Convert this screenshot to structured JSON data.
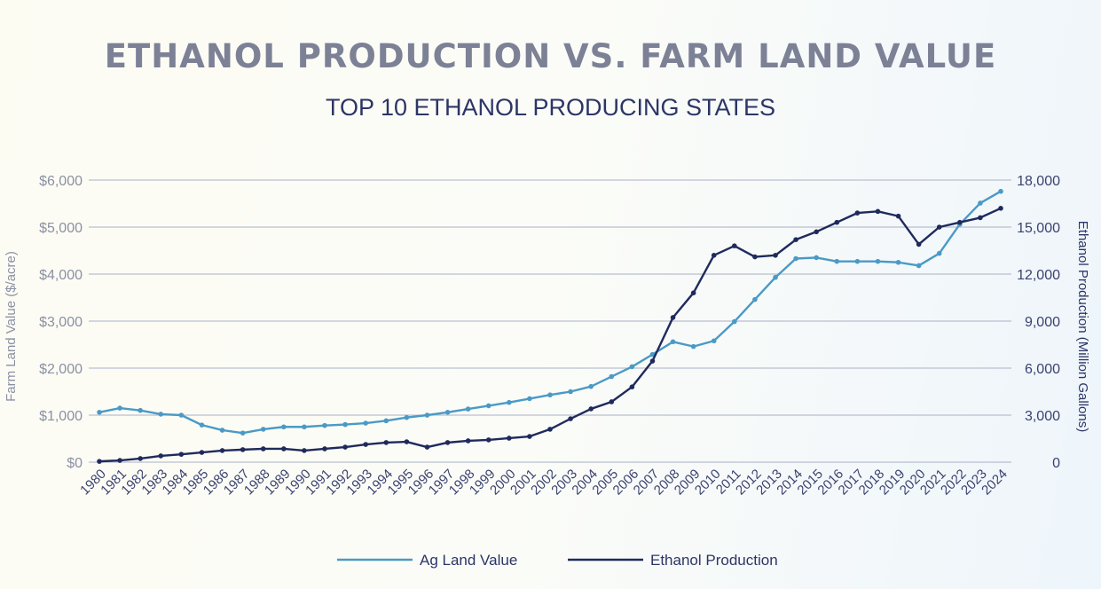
{
  "chart_data": {
    "type": "line",
    "title": "ETHANOL PRODUCTION VS. FARM LAND VALUE",
    "subtitle": "TOP 10 ETHANOL PRODUCING STATES",
    "ylabel": "Farm Land Value ($/acre)",
    "y2label": "Ethanol Production (Million Gallons)",
    "ylim": [
      0,
      6000
    ],
    "y2lim": [
      0,
      18000
    ],
    "yticks": [
      "$0",
      "$1,000",
      "$2,000",
      "$3,000",
      "$4,000",
      "$5,000",
      "$6,000"
    ],
    "y2ticks": [
      "0",
      "3,000",
      "6,000",
      "9,000",
      "12,000",
      "15,000",
      "18,000"
    ],
    "grid": true,
    "legend_position": "bottom",
    "x": [
      "1980",
      "1981",
      "1982",
      "1983",
      "1984",
      "1985",
      "1986",
      "1987",
      "1988",
      "1989",
      "1990",
      "1991",
      "1992",
      "1993",
      "1994",
      "1995",
      "1996",
      "1997",
      "1998",
      "1999",
      "2000",
      "2001",
      "2002",
      "2003",
      "2004",
      "2005",
      "2006",
      "2007",
      "2008",
      "2009",
      "2010",
      "2011",
      "2012",
      "2013",
      "2014",
      "2015",
      "2016",
      "2017",
      "2018",
      "2019",
      "2020",
      "2021",
      "2022",
      "2023",
      "2024"
    ],
    "series": [
      {
        "name": "Ag Land Value",
        "axis": "left",
        "color": "#4a9ac6",
        "values": [
          1060,
          1150,
          1100,
          1020,
          1000,
          790,
          680,
          620,
          700,
          750,
          750,
          780,
          800,
          830,
          880,
          950,
          1000,
          1060,
          1130,
          1200,
          1270,
          1350,
          1430,
          1500,
          1610,
          1820,
          2030,
          2290,
          2560,
          2460,
          2580,
          2990,
          3460,
          3930,
          4330,
          4350,
          4270,
          4270,
          4270,
          4250,
          4180,
          4440,
          5060,
          5510,
          5760
        ]
      },
      {
        "name": "Ethanol Production",
        "axis": "right",
        "color": "#1f2a5c",
        "values": [
          50,
          110,
          230,
          400,
          500,
          620,
          740,
          800,
          850,
          850,
          740,
          850,
          960,
          1130,
          1250,
          1300,
          960,
          1250,
          1360,
          1420,
          1530,
          1640,
          2100,
          2770,
          3400,
          3850,
          4800,
          6450,
          9230,
          10800,
          13200,
          13800,
          13100,
          13200,
          14200,
          14700,
          15300,
          15900,
          16000,
          15700,
          13900,
          15000,
          15300,
          15600,
          16200
        ]
      }
    ]
  }
}
